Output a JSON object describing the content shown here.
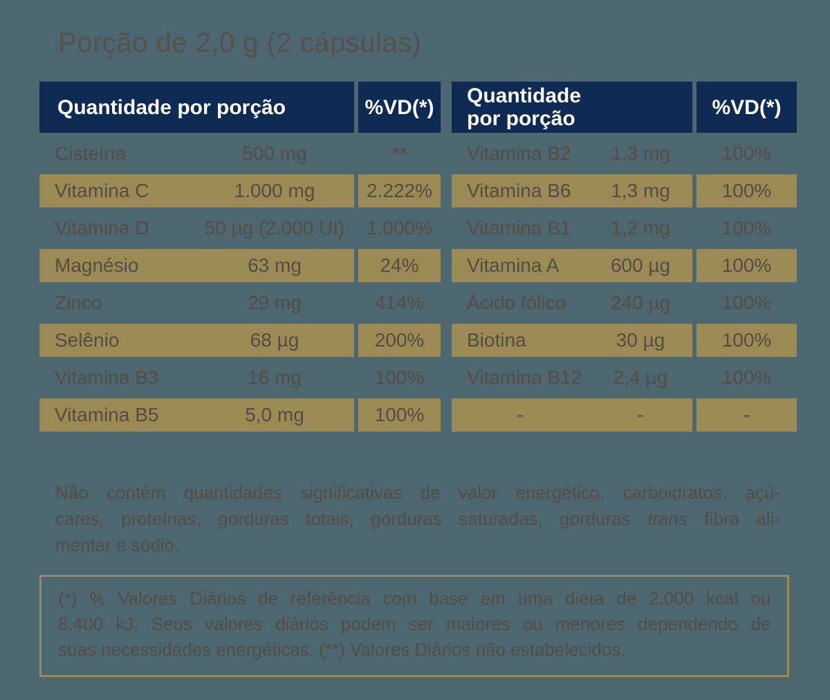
{
  "title": "Porção de 2,0 g (2 cápsulas)",
  "colors": {
    "background": "#4d6771",
    "header_bar": "#0d2a52",
    "header_text": "#fdfdfd",
    "highlight_row": "#9c8a54",
    "ink": "#534e44",
    "footnote_border": "#9d8b56"
  },
  "tables": [
    {
      "header": {
        "quantity_label": "Quantidade por porção",
        "vd_label": "%VD(*)"
      },
      "rows": [
        {
          "name": "Cisteína",
          "qty": "500 mg",
          "vd": "**",
          "highlight": false
        },
        {
          "name": "Vitamina C",
          "qty": "1.000 mg",
          "vd": "2.222%",
          "highlight": true
        },
        {
          "name": "Vitamina D",
          "qty": "50 µg (2.000 UI)",
          "vd": "1.000%",
          "highlight": false
        },
        {
          "name": "Magnésio",
          "qty": "63 mg",
          "vd": "24%",
          "highlight": true
        },
        {
          "name": "Zinco",
          "qty": "29 mg",
          "vd": "414%",
          "highlight": false
        },
        {
          "name": "Selênio",
          "qty": "68 µg",
          "vd": "200%",
          "highlight": true
        },
        {
          "name": "Vitamina B3",
          "qty": "16 mg",
          "vd": "100%",
          "highlight": false
        },
        {
          "name": "Vitamina B5",
          "qty": "5,0 mg",
          "vd": "100%",
          "highlight": true
        }
      ]
    },
    {
      "header": {
        "quantity_label": "Quantidade por porção",
        "vd_label": "%VD(*)"
      },
      "rows": [
        {
          "name": "Vitamina B2",
          "qty": "1,3 mg",
          "vd": "100%",
          "highlight": false
        },
        {
          "name": "Vitamina B6",
          "qty": "1,3 mg",
          "vd": "100%",
          "highlight": true
        },
        {
          "name": "Vitamina B1",
          "qty": "1,2 mg",
          "vd": "100%",
          "highlight": false
        },
        {
          "name": "Vitamina A",
          "qty": "600 µg",
          "vd": "100%",
          "highlight": true
        },
        {
          "name": "Ácido fólico",
          "qty": "240 µg",
          "vd": "100%",
          "highlight": false
        },
        {
          "name": "Biotina",
          "qty": "30 µg",
          "vd": "100%",
          "highlight": true
        },
        {
          "name": "Vitamina B12",
          "qty": "2,4 µg",
          "vd": "100%",
          "highlight": false
        },
        {
          "name": "-",
          "qty": "-",
          "vd": "-",
          "highlight": true,
          "center_name": true
        }
      ]
    }
  ],
  "note": {
    "line1": "Não contém quantidades significativas de valor energético, carboidratos, açú-",
    "line2_pre": "cares, proteínas, gorduras totais, gorduras saturadas, gorduras ",
    "line2_italic": "trans",
    "line2_post": " fibra ali-",
    "line3": "mentar e sódio."
  },
  "footnote": {
    "line1": "(*) % Valores Diários de referência com base em uma dieta de 2.000 kcal ou",
    "line2": "8.400 kJ. Seus valores diários podem ser maiores ou menores dependendo de",
    "line3": "suas necessidades energéticas. (**) Valores Diários não estabelecidos."
  }
}
